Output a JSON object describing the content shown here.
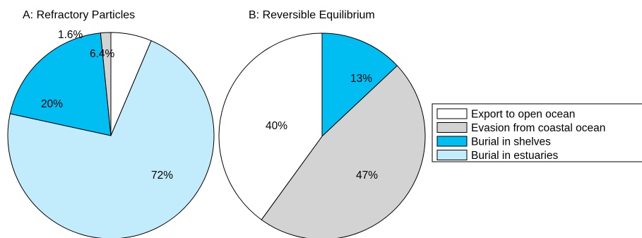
{
  "chart_data": [
    {
      "type": "pie",
      "title": "A: Refractory Particles",
      "slices": [
        {
          "legend_ref": "Export to open ocean",
          "value": 6.4,
          "label": "6.4%",
          "color": "#ffffff"
        },
        {
          "legend_ref": "Burial in estuaries",
          "value": 72,
          "label": "72%",
          "color": "#c2ecfb"
        },
        {
          "legend_ref": "Burial in shelves",
          "value": 20,
          "label": "20%",
          "color": "#00bdf2"
        },
        {
          "legend_ref": "Evasion from coastal ocean",
          "value": 1.6,
          "label": "1.6%",
          "color": "#d3d3d3"
        }
      ]
    },
    {
      "type": "pie",
      "title": "B: Reversible Equilibrium",
      "slices": [
        {
          "legend_ref": "Burial in shelves",
          "value": 13,
          "label": "13%",
          "color": "#00bdf2"
        },
        {
          "legend_ref": "Evasion from coastal ocean",
          "value": 47,
          "label": "47%",
          "color": "#d3d3d3"
        },
        {
          "legend_ref": "Export to open ocean",
          "value": 40,
          "label": "40%",
          "color": "#ffffff"
        }
      ]
    }
  ],
  "legend": {
    "placement": "right",
    "items": [
      {
        "label": "Export to open ocean",
        "color": "#ffffff"
      },
      {
        "label": "Evasion from coastal ocean",
        "color": "#d3d3d3"
      },
      {
        "label": "Burial in shelves",
        "color": "#00bdf2"
      },
      {
        "label": "Burial in estuaries",
        "color": "#c2ecfb"
      }
    ]
  }
}
